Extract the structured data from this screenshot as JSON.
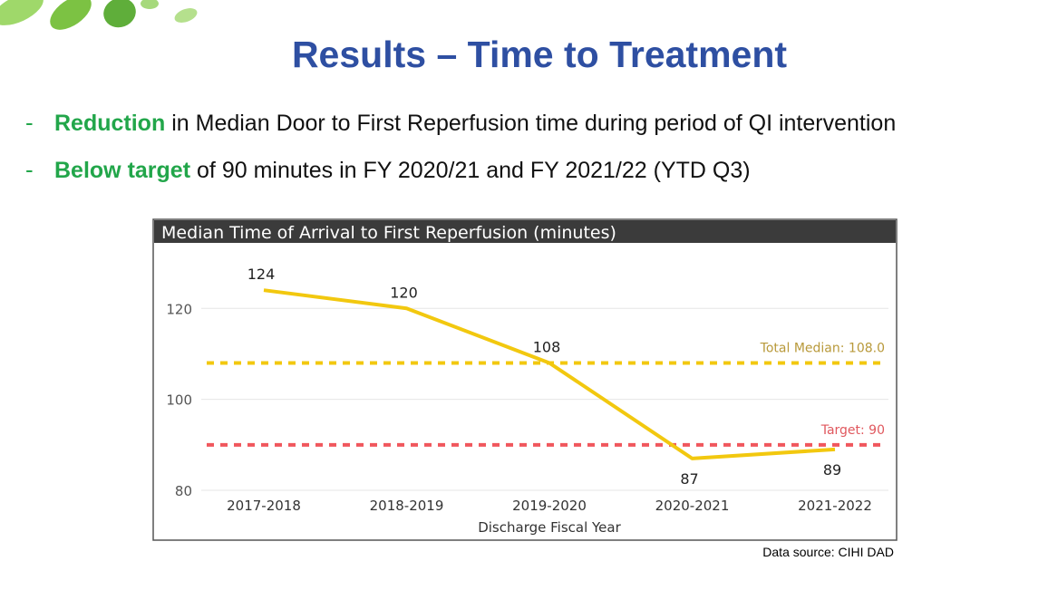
{
  "title": "Results – Time to Treatment",
  "bullet_marker": "-",
  "bullets": [
    {
      "highlight": "Reduction",
      "text": "in Median Door to First Reperfusion time during period of QI intervention"
    },
    {
      "highlight": "Below target",
      "text": "of 90 minutes in FY 2020/21 and FY 2021/22 (YTD Q3)"
    }
  ],
  "chart_data": {
    "type": "line",
    "title": "Median Time of Arrival to First Reperfusion (minutes)",
    "categories": [
      "2017-2018",
      "2018-2019",
      "2019-2020",
      "2020-2021",
      "2021-2022"
    ],
    "values": [
      124,
      120,
      108,
      87,
      89
    ],
    "color": "#f2c80f",
    "xlabel": "Discharge Fiscal Year",
    "ylim": [
      80,
      134
    ],
    "yticks": [
      80,
      100,
      120
    ],
    "grid": true,
    "reference_lines": [
      {
        "label": "Total Median: 108.0",
        "value": 108,
        "color": "#f2c80f",
        "label_color": "#b8993a"
      },
      {
        "label": "Target: 90",
        "value": 90,
        "color": "#f0575d",
        "label_color": "#e0585e"
      }
    ]
  },
  "source": "Data source: CIHI DAD"
}
